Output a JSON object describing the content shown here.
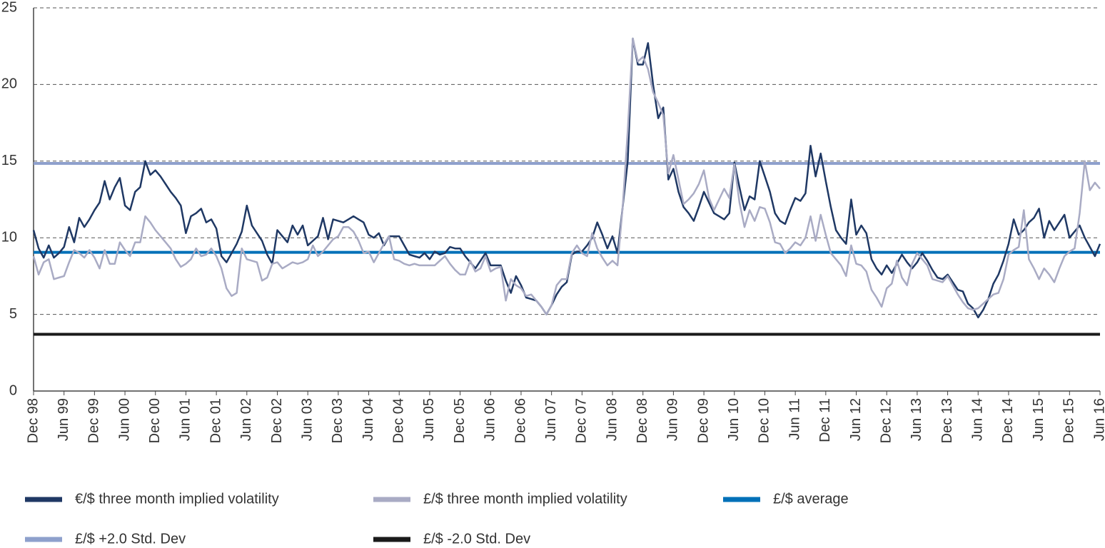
{
  "chart_data": {
    "type": "line",
    "categories": [
      "Dec 98",
      null,
      null,
      null,
      null,
      null,
      "Jun 99",
      null,
      null,
      null,
      null,
      null,
      "Dec 99",
      null,
      null,
      null,
      null,
      null,
      "Jun 00",
      null,
      null,
      null,
      null,
      null,
      "Dec 00",
      null,
      null,
      null,
      null,
      null,
      "Jun 01",
      null,
      null,
      null,
      null,
      null,
      "Dec 01",
      null,
      null,
      null,
      null,
      null,
      "Jun 02",
      null,
      null,
      null,
      null,
      null,
      "Dec 02",
      null,
      null,
      null,
      null,
      null,
      "Jun 03",
      null,
      null,
      null,
      null,
      null,
      "Dec 03",
      null,
      null,
      null,
      null,
      null,
      "Jun 04",
      null,
      null,
      null,
      null,
      null,
      "Dec 04",
      null,
      null,
      null,
      null,
      null,
      "Jun 05",
      null,
      null,
      null,
      null,
      null,
      "Dec 05",
      null,
      null,
      null,
      null,
      null,
      "Jun 06",
      null,
      null,
      null,
      null,
      null,
      "Dec 06",
      null,
      null,
      null,
      null,
      null,
      "Jun 07",
      null,
      null,
      null,
      null,
      null,
      "Dec 07",
      null,
      null,
      null,
      null,
      null,
      "Jun 08",
      null,
      null,
      null,
      null,
      null,
      "Dec 08",
      null,
      null,
      null,
      null,
      null,
      "Jun 09",
      null,
      null,
      null,
      null,
      null,
      "Dec 09",
      null,
      null,
      null,
      null,
      null,
      "Jun 10",
      null,
      null,
      null,
      null,
      null,
      "Dec 10",
      null,
      null,
      null,
      null,
      null,
      "Jun 11",
      null,
      null,
      null,
      null,
      null,
      "Dec 11",
      null,
      null,
      null,
      null,
      null,
      "Jun 12",
      null,
      null,
      null,
      null,
      null,
      "Dec 12",
      null,
      null,
      null,
      null,
      null,
      "Jun 13",
      null,
      null,
      null,
      null,
      null,
      "Dec 13",
      null,
      null,
      null,
      null,
      null,
      "Jun 14",
      null,
      null,
      null,
      null,
      null,
      "Dec 14",
      null,
      null,
      null,
      null,
      null,
      "Jun 15",
      null,
      null,
      null,
      null,
      null,
      "Dec 15",
      null,
      null,
      null,
      null,
      null,
      "Jun 16"
    ],
    "series": [
      {
        "name": "€/$ three month implied volatility",
        "color": "#1f3864",
        "values": [
          10.5,
          9.3,
          8.7,
          9.5,
          8.7,
          9.0,
          9.4,
          10.7,
          9.7,
          11.3,
          10.7,
          11.2,
          11.8,
          12.3,
          13.7,
          12.5,
          13.3,
          13.9,
          12.1,
          11.8,
          13.0,
          13.3,
          15.0,
          14.1,
          14.4,
          14.0,
          13.5,
          13.0,
          12.6,
          12.1,
          10.3,
          11.4,
          11.6,
          11.9,
          11.0,
          11.2,
          10.6,
          8.8,
          8.4,
          9.0,
          9.6,
          10.4,
          12.1,
          10.8,
          10.3,
          9.8,
          8.9,
          8.3,
          10.5,
          10.1,
          9.7,
          10.8,
          10.2,
          10.8,
          9.5,
          9.8,
          10.1,
          11.3,
          9.9,
          11.2,
          11.1,
          11.0,
          11.2,
          11.4,
          11.2,
          11.0,
          10.2,
          10.0,
          10.3,
          9.5,
          10.1,
          10.1,
          10.1,
          9.5,
          8.9,
          8.8,
          8.7,
          9.0,
          8.6,
          9.1,
          8.9,
          9.0,
          9.4,
          9.3,
          9.3,
          8.8,
          8.4,
          8.0,
          8.5,
          9.0,
          8.2,
          8.2,
          8.2,
          7.2,
          6.4,
          7.5,
          6.9,
          6.1,
          6.0,
          5.9,
          5.5,
          5.0,
          5.6,
          6.3,
          6.8,
          7.1,
          8.9,
          9.1,
          9.1,
          9.5,
          10.0,
          11.0,
          10.2,
          9.3,
          10.1,
          9.0,
          12.0,
          15.0,
          23.0,
          21.3,
          21.3,
          22.7,
          20.0,
          17.8,
          18.5,
          13.8,
          14.5,
          13.0,
          12.0,
          11.6,
          11.1,
          12.0,
          13.0,
          12.3,
          11.6,
          11.4,
          11.2,
          11.6,
          14.9,
          13.3,
          11.8,
          12.7,
          12.5,
          15.0,
          14.0,
          13.0,
          11.6,
          11.1,
          10.9,
          11.8,
          12.6,
          12.4,
          12.9,
          16.0,
          14.0,
          15.5,
          13.7,
          12.0,
          10.5,
          10.0,
          9.6,
          12.5,
          10.2,
          10.8,
          10.3,
          8.6,
          8.0,
          7.6,
          8.2,
          7.7,
          8.3,
          8.9,
          8.4,
          8.0,
          8.4,
          9.0,
          8.5,
          7.9,
          7.4,
          7.3,
          7.6,
          7.1,
          6.6,
          6.5,
          5.7,
          5.4,
          4.8,
          5.3,
          6.0,
          7.0,
          7.6,
          8.5,
          9.6,
          11.2,
          10.2,
          10.5,
          11.0,
          11.3,
          11.9,
          10.0,
          11.1,
          10.5,
          11.0,
          11.5,
          10.0,
          10.4,
          10.8,
          10.0,
          9.4,
          8.8,
          9.6
        ]
      },
      {
        "name": "£/$ three month implied volatility",
        "color": "#a9abc4",
        "values": [
          8.8,
          7.6,
          8.4,
          8.6,
          7.3,
          7.4,
          7.5,
          8.4,
          9.2,
          9.0,
          8.7,
          9.2,
          8.7,
          8.0,
          9.2,
          8.3,
          8.3,
          9.7,
          9.2,
          8.8,
          9.7,
          9.7,
          11.4,
          11.0,
          10.5,
          10.1,
          9.7,
          9.3,
          8.6,
          8.1,
          8.3,
          8.6,
          9.3,
          8.8,
          8.9,
          9.3,
          8.8,
          8.0,
          6.7,
          6.2,
          6.4,
          9.3,
          8.6,
          8.5,
          8.4,
          7.2,
          7.4,
          8.3,
          8.4,
          8.0,
          8.2,
          8.4,
          8.3,
          8.4,
          8.6,
          9.5,
          8.8,
          9.1,
          9.5,
          9.9,
          10.1,
          10.7,
          10.7,
          10.4,
          9.8,
          9.0,
          9.1,
          8.4,
          9.0,
          9.6,
          10.1,
          8.6,
          8.5,
          8.3,
          8.2,
          8.3,
          8.2,
          8.2,
          8.2,
          8.2,
          8.5,
          8.8,
          8.3,
          7.9,
          7.6,
          7.6,
          8.5,
          7.8,
          8.0,
          8.8,
          7.8,
          8.0,
          8.1,
          5.9,
          7.3,
          6.9,
          6.7,
          6.2,
          6.3,
          5.9,
          5.5,
          5.0,
          5.6,
          6.9,
          7.3,
          7.3,
          9.0,
          9.5,
          9.0,
          8.8,
          10.3,
          9.3,
          8.7,
          8.2,
          8.5,
          8.2,
          12.0,
          17.0,
          23.0,
          21.5,
          21.8,
          21.0,
          19.5,
          18.8,
          18.0,
          14.2,
          15.4,
          13.8,
          12.2,
          12.5,
          12.9,
          13.5,
          14.4,
          12.6,
          11.8,
          12.5,
          13.2,
          12.6,
          14.8,
          12.3,
          10.7,
          11.8,
          11.1,
          12.0,
          11.9,
          11.0,
          9.7,
          9.6,
          9.0,
          9.3,
          9.7,
          9.5,
          10.0,
          11.4,
          9.8,
          11.5,
          10.2,
          9.0,
          8.6,
          8.2,
          7.5,
          9.5,
          8.3,
          8.2,
          7.8,
          6.6,
          6.1,
          5.5,
          6.7,
          7.0,
          8.5,
          7.4,
          6.9,
          8.3,
          9.0,
          8.6,
          8.2,
          7.3,
          7.2,
          7.1,
          7.5,
          6.9,
          6.3,
          5.8,
          5.4,
          5.3,
          5.4,
          5.7,
          6.0,
          6.3,
          6.4,
          7.3,
          8.9,
          9.2,
          9.4,
          11.8,
          8.6,
          8.0,
          7.3,
          8.0,
          7.6,
          7.1,
          8.0,
          8.8,
          9.1,
          9.3,
          11.6,
          15.0,
          13.1,
          13.6,
          13.2
        ]
      },
      {
        "name": "£/$ average",
        "color": "#0070b8",
        "value": 9.05
      },
      {
        "name": "£/$ +2.0 Std. Dev",
        "color": "#8ea0cc",
        "value": 14.85
      },
      {
        "name": "£/$ -2.0 Std. Dev",
        "color": "#1a1a1a",
        "value": 3.7
      }
    ],
    "ylim": [
      0,
      25
    ],
    "yticks": [
      0,
      5,
      10,
      15,
      20,
      25
    ],
    "grid": true
  }
}
